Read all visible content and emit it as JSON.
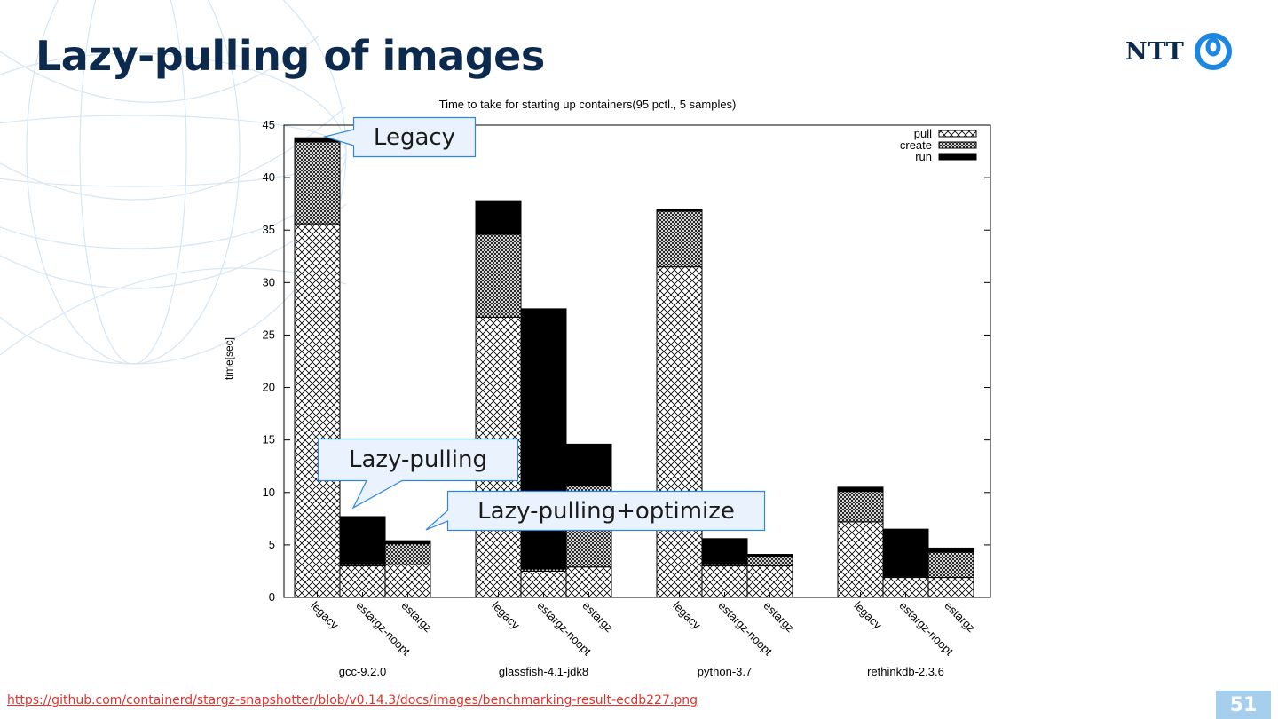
{
  "slide": {
    "title": "Lazy-pulling of images",
    "logo_text": "NTT",
    "page_number": "51",
    "source_link": "https://github.com/containerd/stargz-snapshotter/blob/v0.14.3/docs/images/benchmarking-result-ecdb227.png",
    "colors": {
      "title": "#0c2a4d",
      "link": "#e8302a",
      "page_badge": "#a6cfee",
      "logo_mark": "#1d86e0",
      "callout_fill": "#eaf3fd",
      "callout_border": "#2e86de"
    }
  },
  "callouts": {
    "legacy": "Legacy",
    "lazy_pulling": "Lazy-pulling",
    "lazy_pulling_optimize": "Lazy-pulling+optimize"
  },
  "chart_data": {
    "type": "bar",
    "stacked": true,
    "title": "Time to take for starting up containers(95 pctl., 5 samples)",
    "xlabel": "",
    "ylabel": "time[sec]",
    "ylim": [
      0,
      45
    ],
    "yticks": [
      0,
      5,
      10,
      15,
      20,
      25,
      30,
      35,
      40,
      45
    ],
    "grid": false,
    "legend_position": "top-right",
    "groups": [
      "gcc-9.2.0",
      "glassfish-4.1-jdk8",
      "python-3.7",
      "rethinkdb-2.3.6"
    ],
    "bar_labels": [
      "legacy",
      "estargz-noopt",
      "estargz"
    ],
    "categories": [
      "gcc-9.2.0 legacy",
      "gcc-9.2.0 estargz-noopt",
      "gcc-9.2.0 estargz",
      "glassfish-4.1-jdk8 legacy",
      "glassfish-4.1-jdk8 estargz-noopt",
      "glassfish-4.1-jdk8 estargz",
      "python-3.7 legacy",
      "python-3.7 estargz-noopt",
      "python-3.7 estargz",
      "rethinkdb-2.3.6 legacy",
      "rethinkdb-2.3.6 estargz-noopt",
      "rethinkdb-2.3.6 estargz"
    ],
    "series": [
      {
        "name": "pull",
        "pattern": "crosshatch",
        "values": [
          35.6,
          3.0,
          3.1,
          26.7,
          2.5,
          2.9,
          31.5,
          3.0,
          3.0,
          7.2,
          1.9,
          1.9
        ]
      },
      {
        "name": "create",
        "pattern": "dense-crosshatch",
        "values": [
          7.8,
          0.2,
          2.0,
          7.9,
          0.2,
          7.8,
          5.3,
          0.2,
          0.9,
          2.9,
          0.1,
          2.4
        ]
      },
      {
        "name": "run",
        "pattern": "solid-black",
        "values": [
          0.4,
          4.5,
          0.3,
          3.2,
          24.8,
          3.9,
          0.2,
          2.4,
          0.2,
          0.4,
          4.5,
          0.4
        ]
      }
    ]
  }
}
